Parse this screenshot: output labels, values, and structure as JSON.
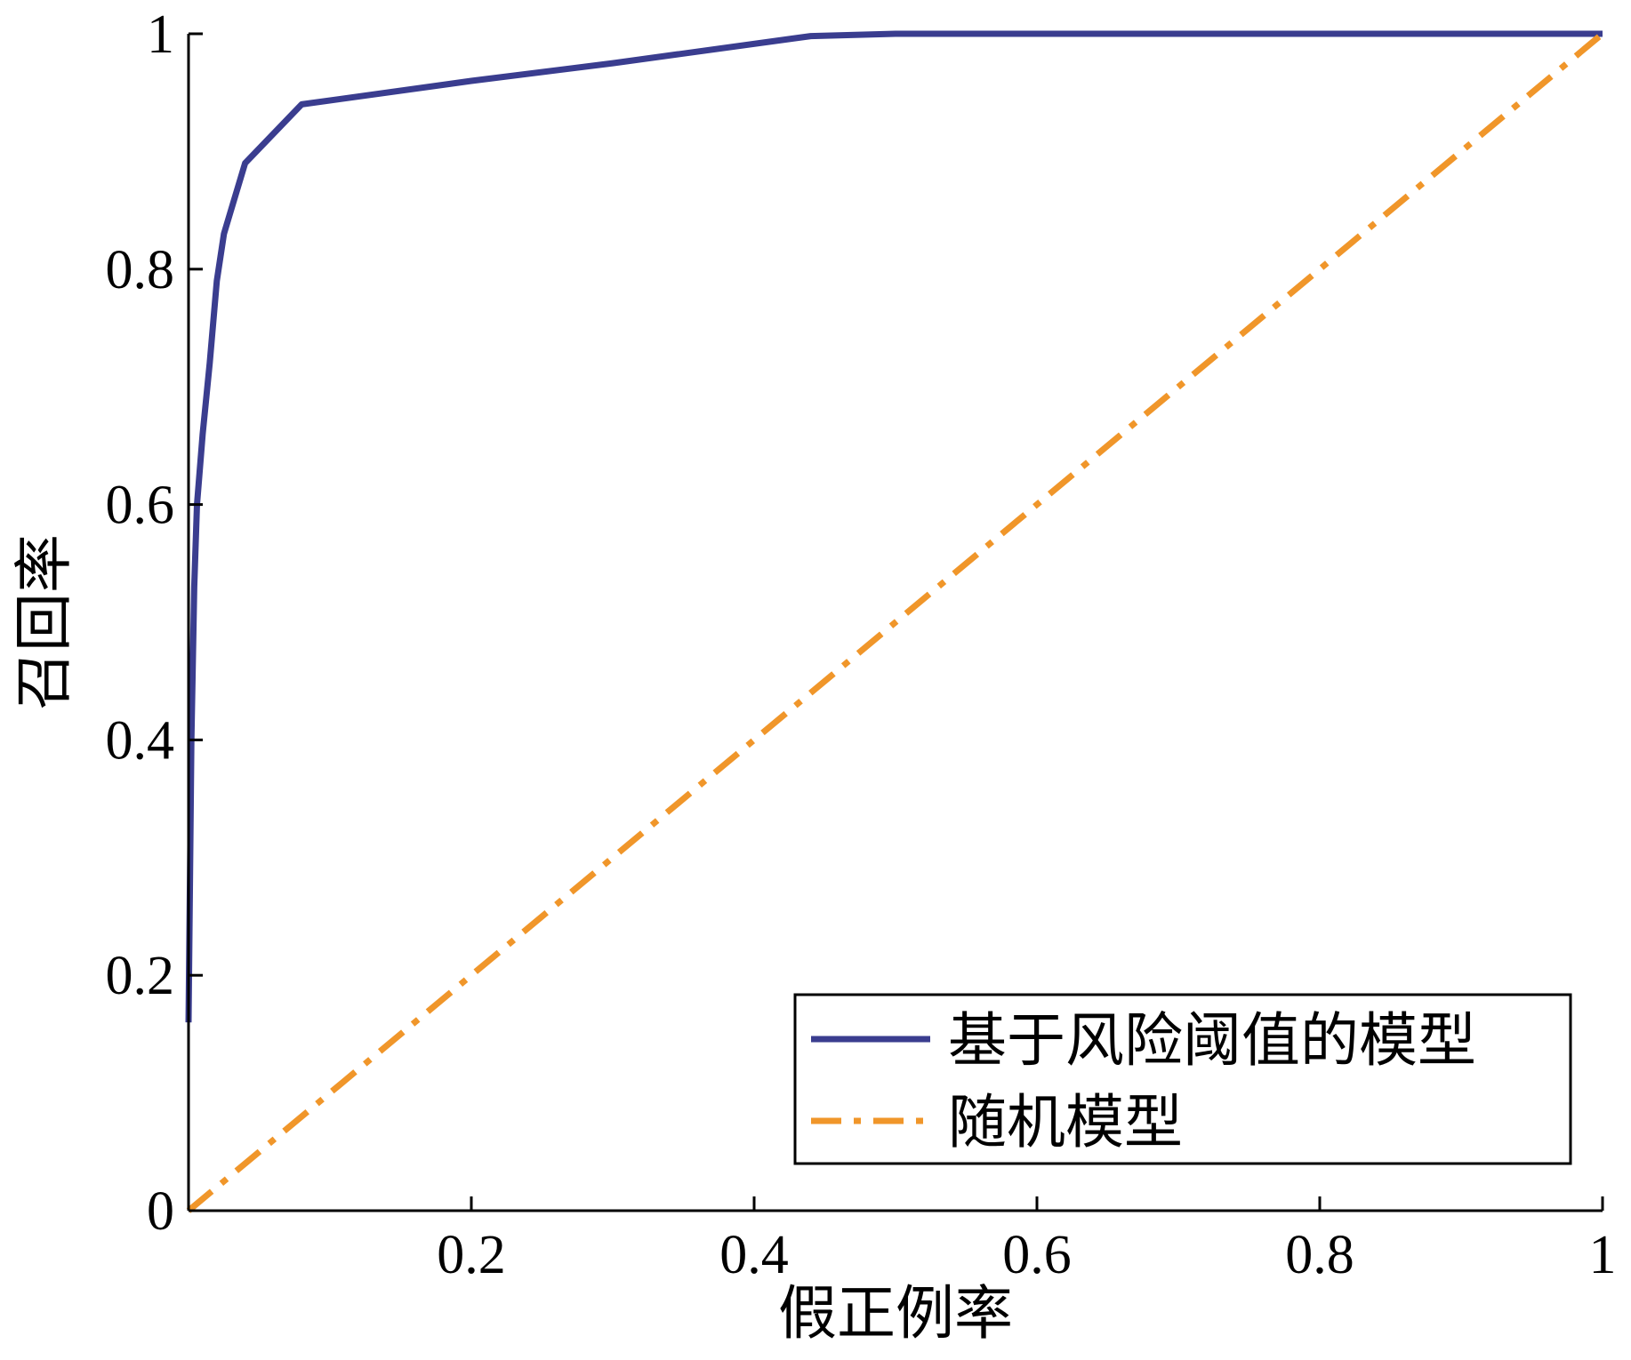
{
  "chart_data": {
    "type": "line",
    "xlabel": "假正例率",
    "ylabel": "召回率",
    "xlim": [
      0,
      1
    ],
    "ylim": [
      0,
      1
    ],
    "x_ticks": [
      {
        "value": 0.2,
        "label": "0.2"
      },
      {
        "value": 0.4,
        "label": "0.4"
      },
      {
        "value": 0.6,
        "label": "0.6"
      },
      {
        "value": 0.8,
        "label": "0.8"
      },
      {
        "value": 1,
        "label": "1"
      }
    ],
    "y_ticks": [
      {
        "value": 0,
        "label": "0"
      },
      {
        "value": 0.2,
        "label": "0.2"
      },
      {
        "value": 0.4,
        "label": "0.4"
      },
      {
        "value": 0.6,
        "label": "0.6"
      },
      {
        "value": 0.8,
        "label": "0.8"
      },
      {
        "value": 1,
        "label": "1"
      }
    ],
    "grid": false,
    "legend_position": "bottom-right",
    "series": [
      {
        "name": "基于风险阈值的模型",
        "color": "#3a3d8f",
        "style": "solid",
        "x": [
          0.0,
          0.002,
          0.004,
          0.006,
          0.01,
          0.015,
          0.02,
          0.025,
          0.03,
          0.04,
          0.08,
          0.2,
          0.3,
          0.44,
          0.5,
          1.0
        ],
        "y": [
          0.16,
          0.4,
          0.53,
          0.6,
          0.66,
          0.72,
          0.79,
          0.83,
          0.85,
          0.89,
          0.94,
          0.96,
          0.975,
          0.998,
          1.0,
          1.0
        ]
      },
      {
        "name": "随机模型",
        "color": "#f0962a",
        "style": "dash-dot",
        "x": [
          0,
          1
        ],
        "y": [
          0,
          1
        ]
      }
    ]
  }
}
